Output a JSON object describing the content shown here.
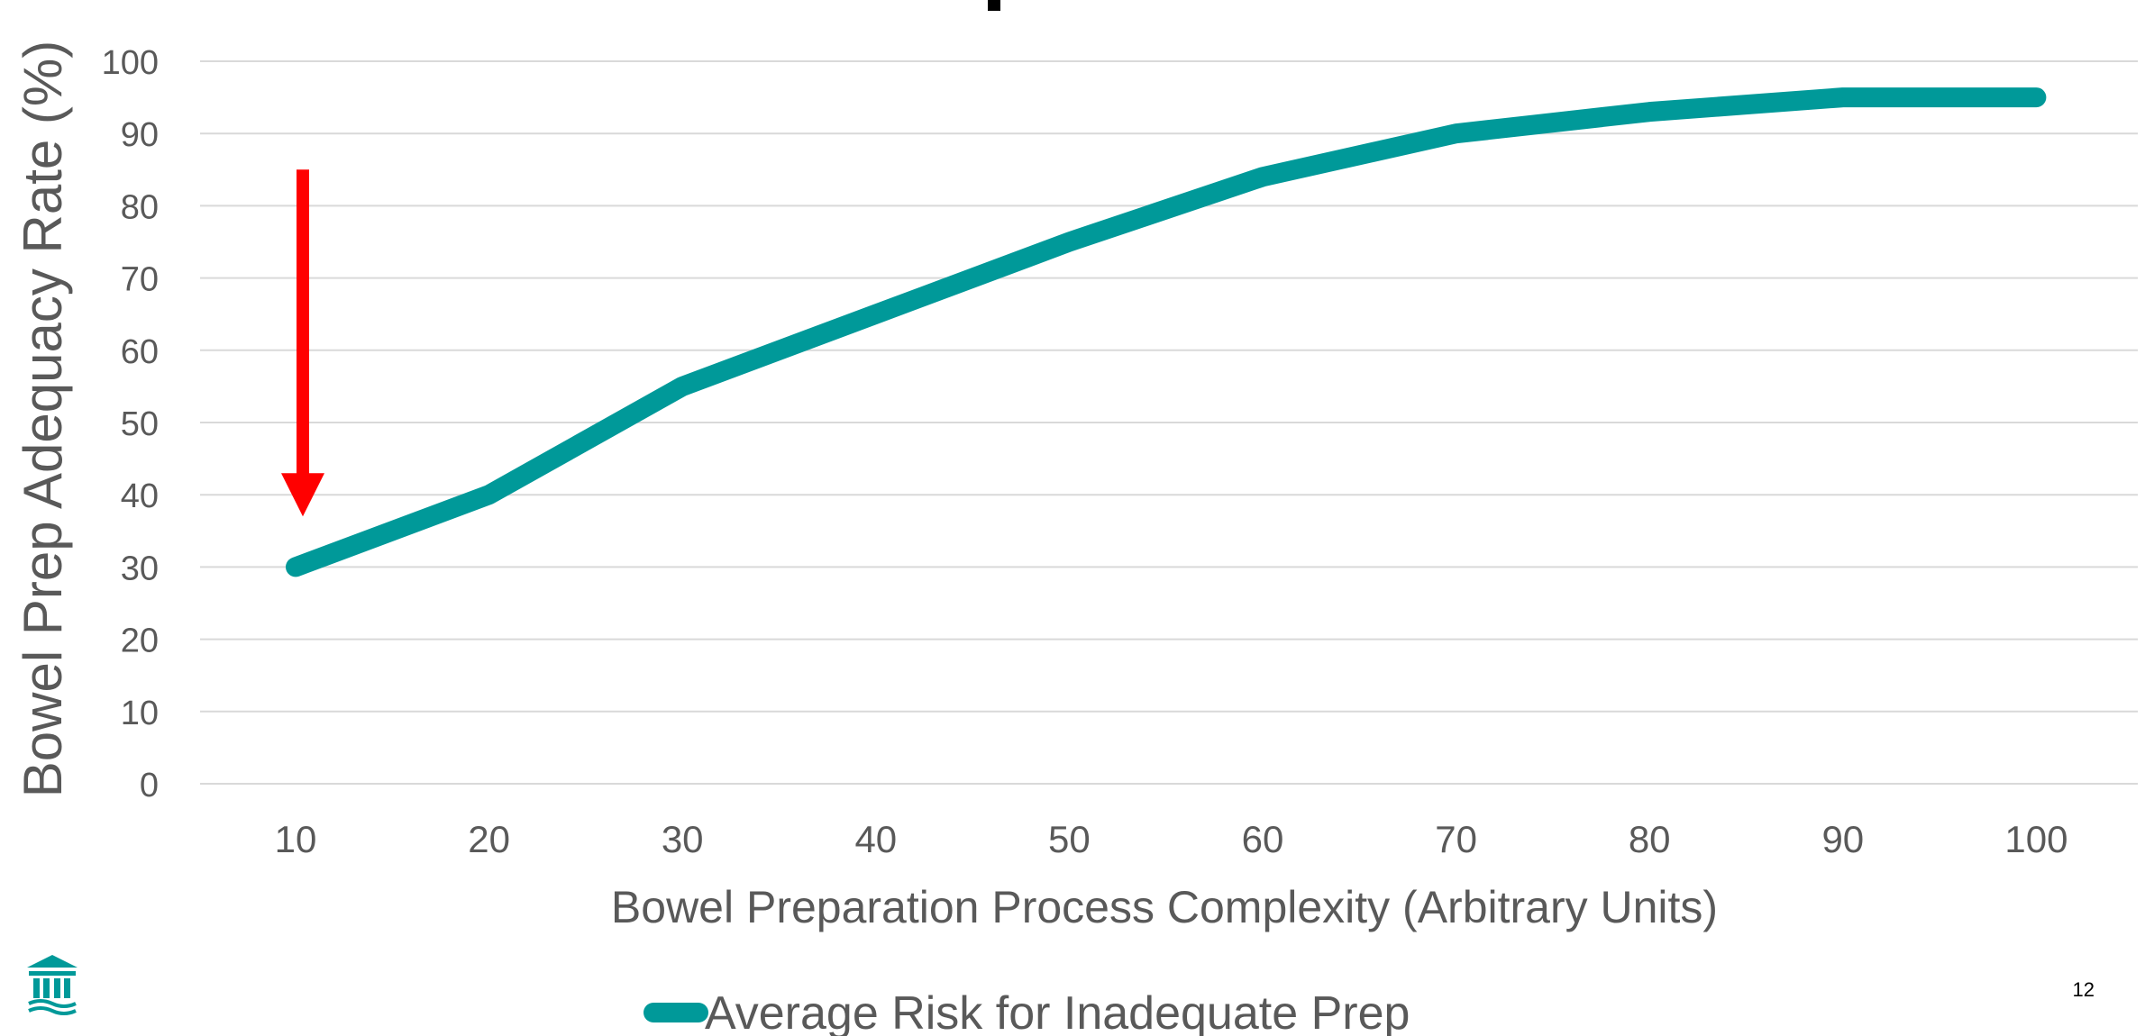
{
  "chart_data": {
    "type": "line",
    "x": [
      10,
      20,
      30,
      40,
      50,
      60,
      70,
      80,
      90,
      100
    ],
    "x_tick_labels": [
      "10",
      "20",
      "30",
      "40",
      "50",
      "60",
      "70",
      "80",
      "90",
      "100"
    ],
    "y_tick_labels": [
      "0",
      "10",
      "20",
      "30",
      "40",
      "50",
      "60",
      "70",
      "80",
      "90",
      "100"
    ],
    "series": [
      {
        "name": "Average Risk for Inadequate Prep",
        "color": "#009999",
        "values": [
          30,
          40,
          55,
          65,
          75,
          84,
          90,
          93,
          95,
          95
        ]
      }
    ],
    "xlabel": "Bowel Preparation Process Complexity (Arbitrary Units)",
    "ylabel": "Bowel Prep Adequacy Rate (%)",
    "ylim": [
      0,
      100
    ],
    "grid": true,
    "legend_position": "bottom",
    "annotation": {
      "type": "arrow",
      "color": "#ff0000",
      "x": 10,
      "y_from": 85,
      "y_to": 38
    }
  },
  "page": {
    "number": "12"
  },
  "colors": {
    "gridline": "#d9d9d9",
    "text": "#595959",
    "logo": "#009999"
  },
  "icons": {
    "logo": "institution-columns-icon"
  }
}
